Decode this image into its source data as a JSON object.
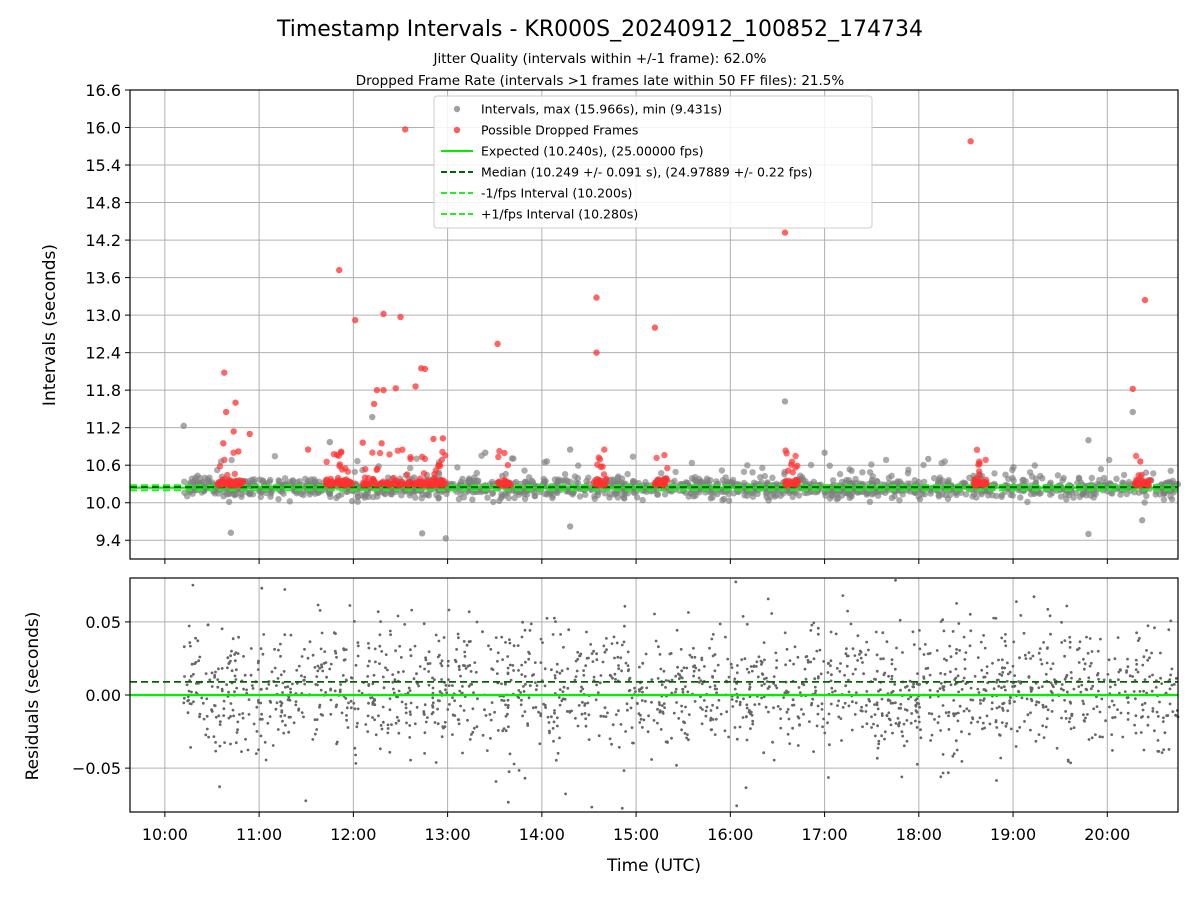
{
  "figure": {
    "title": "Timestamp Intervals - KR000S_20240912_100852_174734",
    "subtitle_1": "Jitter Quality (intervals within +/-1 frame): 62.0%",
    "subtitle_2": "Dropped Frame Rate (intervals >1 frames late within 50 FF files): 21.5%",
    "xlabel": "Time (UTC)"
  },
  "colors": {
    "interval_points": "#808080",
    "dropped_points": "#ff3030",
    "expected_line": "#00ee00",
    "median_line": "#006400",
    "fps_interval_lines": "#22ee22",
    "residual_points": "#666666",
    "grid": "#b0b0b0"
  },
  "chart_data": [
    {
      "type": "scatter",
      "ylabel": "Intervals (seconds)",
      "x_unit": "hours (UTC)",
      "xlim": [
        9.63,
        20.75
      ],
      "ylim": [
        9.1,
        16.6
      ],
      "yticks": [
        9.4,
        10.0,
        10.6,
        11.2,
        11.8,
        12.4,
        13.0,
        13.6,
        14.2,
        14.8,
        15.4,
        16.0,
        16.6
      ],
      "ytick_labels": [
        "9.4",
        "10.0",
        "10.6",
        "11.2",
        "11.8",
        "12.4",
        "13.0",
        "13.6",
        "14.2",
        "14.8",
        "15.4",
        "16.0",
        "16.6"
      ],
      "grid": true,
      "legend_position": "top-center",
      "legend": [
        {
          "label": "Intervals, max (15.966s), min (9.431s)",
          "kind": "marker",
          "color": "#a0a0a0"
        },
        {
          "label": "Possible Dropped Frames",
          "kind": "marker",
          "color": "#ff5a5a"
        },
        {
          "label": "Expected (10.240s), (25.00000 fps)",
          "kind": "line",
          "style": "solid",
          "color": "#00ee00"
        },
        {
          "label": "Median (10.249 +/- 0.091 s), (24.97889 +/- 0.22 fps)",
          "kind": "line",
          "style": "dashed",
          "color": "#006400"
        },
        {
          "label": "-1/fps Interval (10.200s)",
          "kind": "line",
          "style": "dashed",
          "color": "#22ee22"
        },
        {
          "label": "+1/fps Interval (10.280s)",
          "kind": "line",
          "style": "dashed",
          "color": "#22ee22"
        }
      ],
      "reference_lines": {
        "expected": 10.24,
        "median": 10.249,
        "minus_one_frame": 10.2,
        "plus_one_frame": 10.28
      },
      "stats": {
        "max": 15.966,
        "min": 9.431,
        "median_std": 0.091
      },
      "series": [
        {
          "name": "Intervals, max (15.966s), min (9.431s)",
          "time_range": [
            10.2,
            20.75
          ],
          "typical_range": [
            9.8,
            10.6
          ],
          "count": 1600,
          "notable_points": [
            {
              "x": 10.2,
              "y": 11.23
            },
            {
              "x": 11.75,
              "y": 10.97
            },
            {
              "x": 12.2,
              "y": 11.37
            },
            {
              "x": 12.98,
              "y": 9.43
            },
            {
              "x": 13.4,
              "y": 10.8
            },
            {
              "x": 14.3,
              "y": 10.85
            },
            {
              "x": 14.3,
              "y": 9.62
            },
            {
              "x": 16.58,
              "y": 11.62
            },
            {
              "x": 17.0,
              "y": 10.8
            },
            {
              "x": 18.1,
              "y": 10.7
            },
            {
              "x": 19.8,
              "y": 11.0
            },
            {
              "x": 19.8,
              "y": 9.5
            },
            {
              "x": 20.27,
              "y": 11.45
            },
            {
              "x": 20.37,
              "y": 9.72
            },
            {
              "x": 10.7,
              "y": 9.52
            },
            {
              "x": 12.73,
              "y": 9.51
            }
          ]
        },
        {
          "name": "Possible Dropped Frames",
          "cluster_times": [
            10.7,
            11.85,
            12.55,
            13.6,
            14.62,
            15.27,
            16.65,
            18.65,
            20.37
          ],
          "points": [
            {
              "x": 10.63,
              "y": 12.08
            },
            {
              "x": 10.65,
              "y": 11.45
            },
            {
              "x": 10.75,
              "y": 11.6
            },
            {
              "x": 10.73,
              "y": 11.14
            },
            {
              "x": 10.9,
              "y": 11.1
            },
            {
              "x": 10.62,
              "y": 10.95
            },
            {
              "x": 10.78,
              "y": 10.82
            },
            {
              "x": 11.85,
              "y": 13.72
            },
            {
              "x": 12.02,
              "y": 12.92
            },
            {
              "x": 12.32,
              "y": 13.02
            },
            {
              "x": 12.5,
              "y": 12.97
            },
            {
              "x": 12.25,
              "y": 11.8
            },
            {
              "x": 12.32,
              "y": 11.8
            },
            {
              "x": 12.45,
              "y": 11.83
            },
            {
              "x": 12.22,
              "y": 11.58
            },
            {
              "x": 12.72,
              "y": 12.15
            },
            {
              "x": 12.76,
              "y": 12.14
            },
            {
              "x": 12.66,
              "y": 11.86
            },
            {
              "x": 12.55,
              "y": 15.97
            },
            {
              "x": 12.1,
              "y": 10.96
            },
            {
              "x": 12.3,
              "y": 10.95
            },
            {
              "x": 12.85,
              "y": 11.02
            },
            {
              "x": 12.95,
              "y": 11.03
            },
            {
              "x": 13.53,
              "y": 12.54
            },
            {
              "x": 14.58,
              "y": 13.28
            },
            {
              "x": 14.58,
              "y": 12.4
            },
            {
              "x": 15.2,
              "y": 12.8
            },
            {
              "x": 16.58,
              "y": 14.32
            },
            {
              "x": 18.55,
              "y": 15.78
            },
            {
              "x": 20.27,
              "y": 11.82
            },
            {
              "x": 20.4,
              "y": 13.24
            },
            {
              "x": 20.35,
              "y": 10.66
            },
            {
              "x": 11.52,
              "y": 10.85
            }
          ]
        },
        {
          "name": "Expected (10.240s), (25.00000 fps)",
          "y": 10.24
        },
        {
          "name": "Median (10.249 +/- 0.091 s), (24.97889 +/- 0.22 fps)",
          "y": 10.249
        },
        {
          "name": "-1/fps Interval (10.200s)",
          "y": 10.2
        },
        {
          "name": "+1/fps Interval (10.280s)",
          "y": 10.28
        }
      ]
    },
    {
      "type": "scatter",
      "ylabel": "Residuals (seconds)",
      "xlabel": "Time (UTC)",
      "xlim": [
        9.63,
        20.75
      ],
      "ylim": [
        -0.08,
        0.08
      ],
      "yticks": [
        -0.05,
        0.0,
        0.05
      ],
      "ytick_labels": [
        "−0.05",
        "0.00",
        "0.05"
      ],
      "xticks": [
        10,
        11,
        12,
        13,
        14,
        15,
        16,
        17,
        18,
        19,
        20
      ],
      "xtick_labels": [
        "10:00",
        "11:00",
        "12:00",
        "13:00",
        "14:00",
        "15:00",
        "16:00",
        "17:00",
        "18:00",
        "19:00",
        "20:00"
      ],
      "grid": true,
      "reference_lines": {
        "zero": 0.0,
        "median_offset": 0.009
      },
      "series": [
        {
          "name": "residuals",
          "time_range": [
            10.2,
            20.75
          ],
          "typical_range": [
            -0.08,
            0.08
          ],
          "count": 1800
        }
      ]
    }
  ]
}
